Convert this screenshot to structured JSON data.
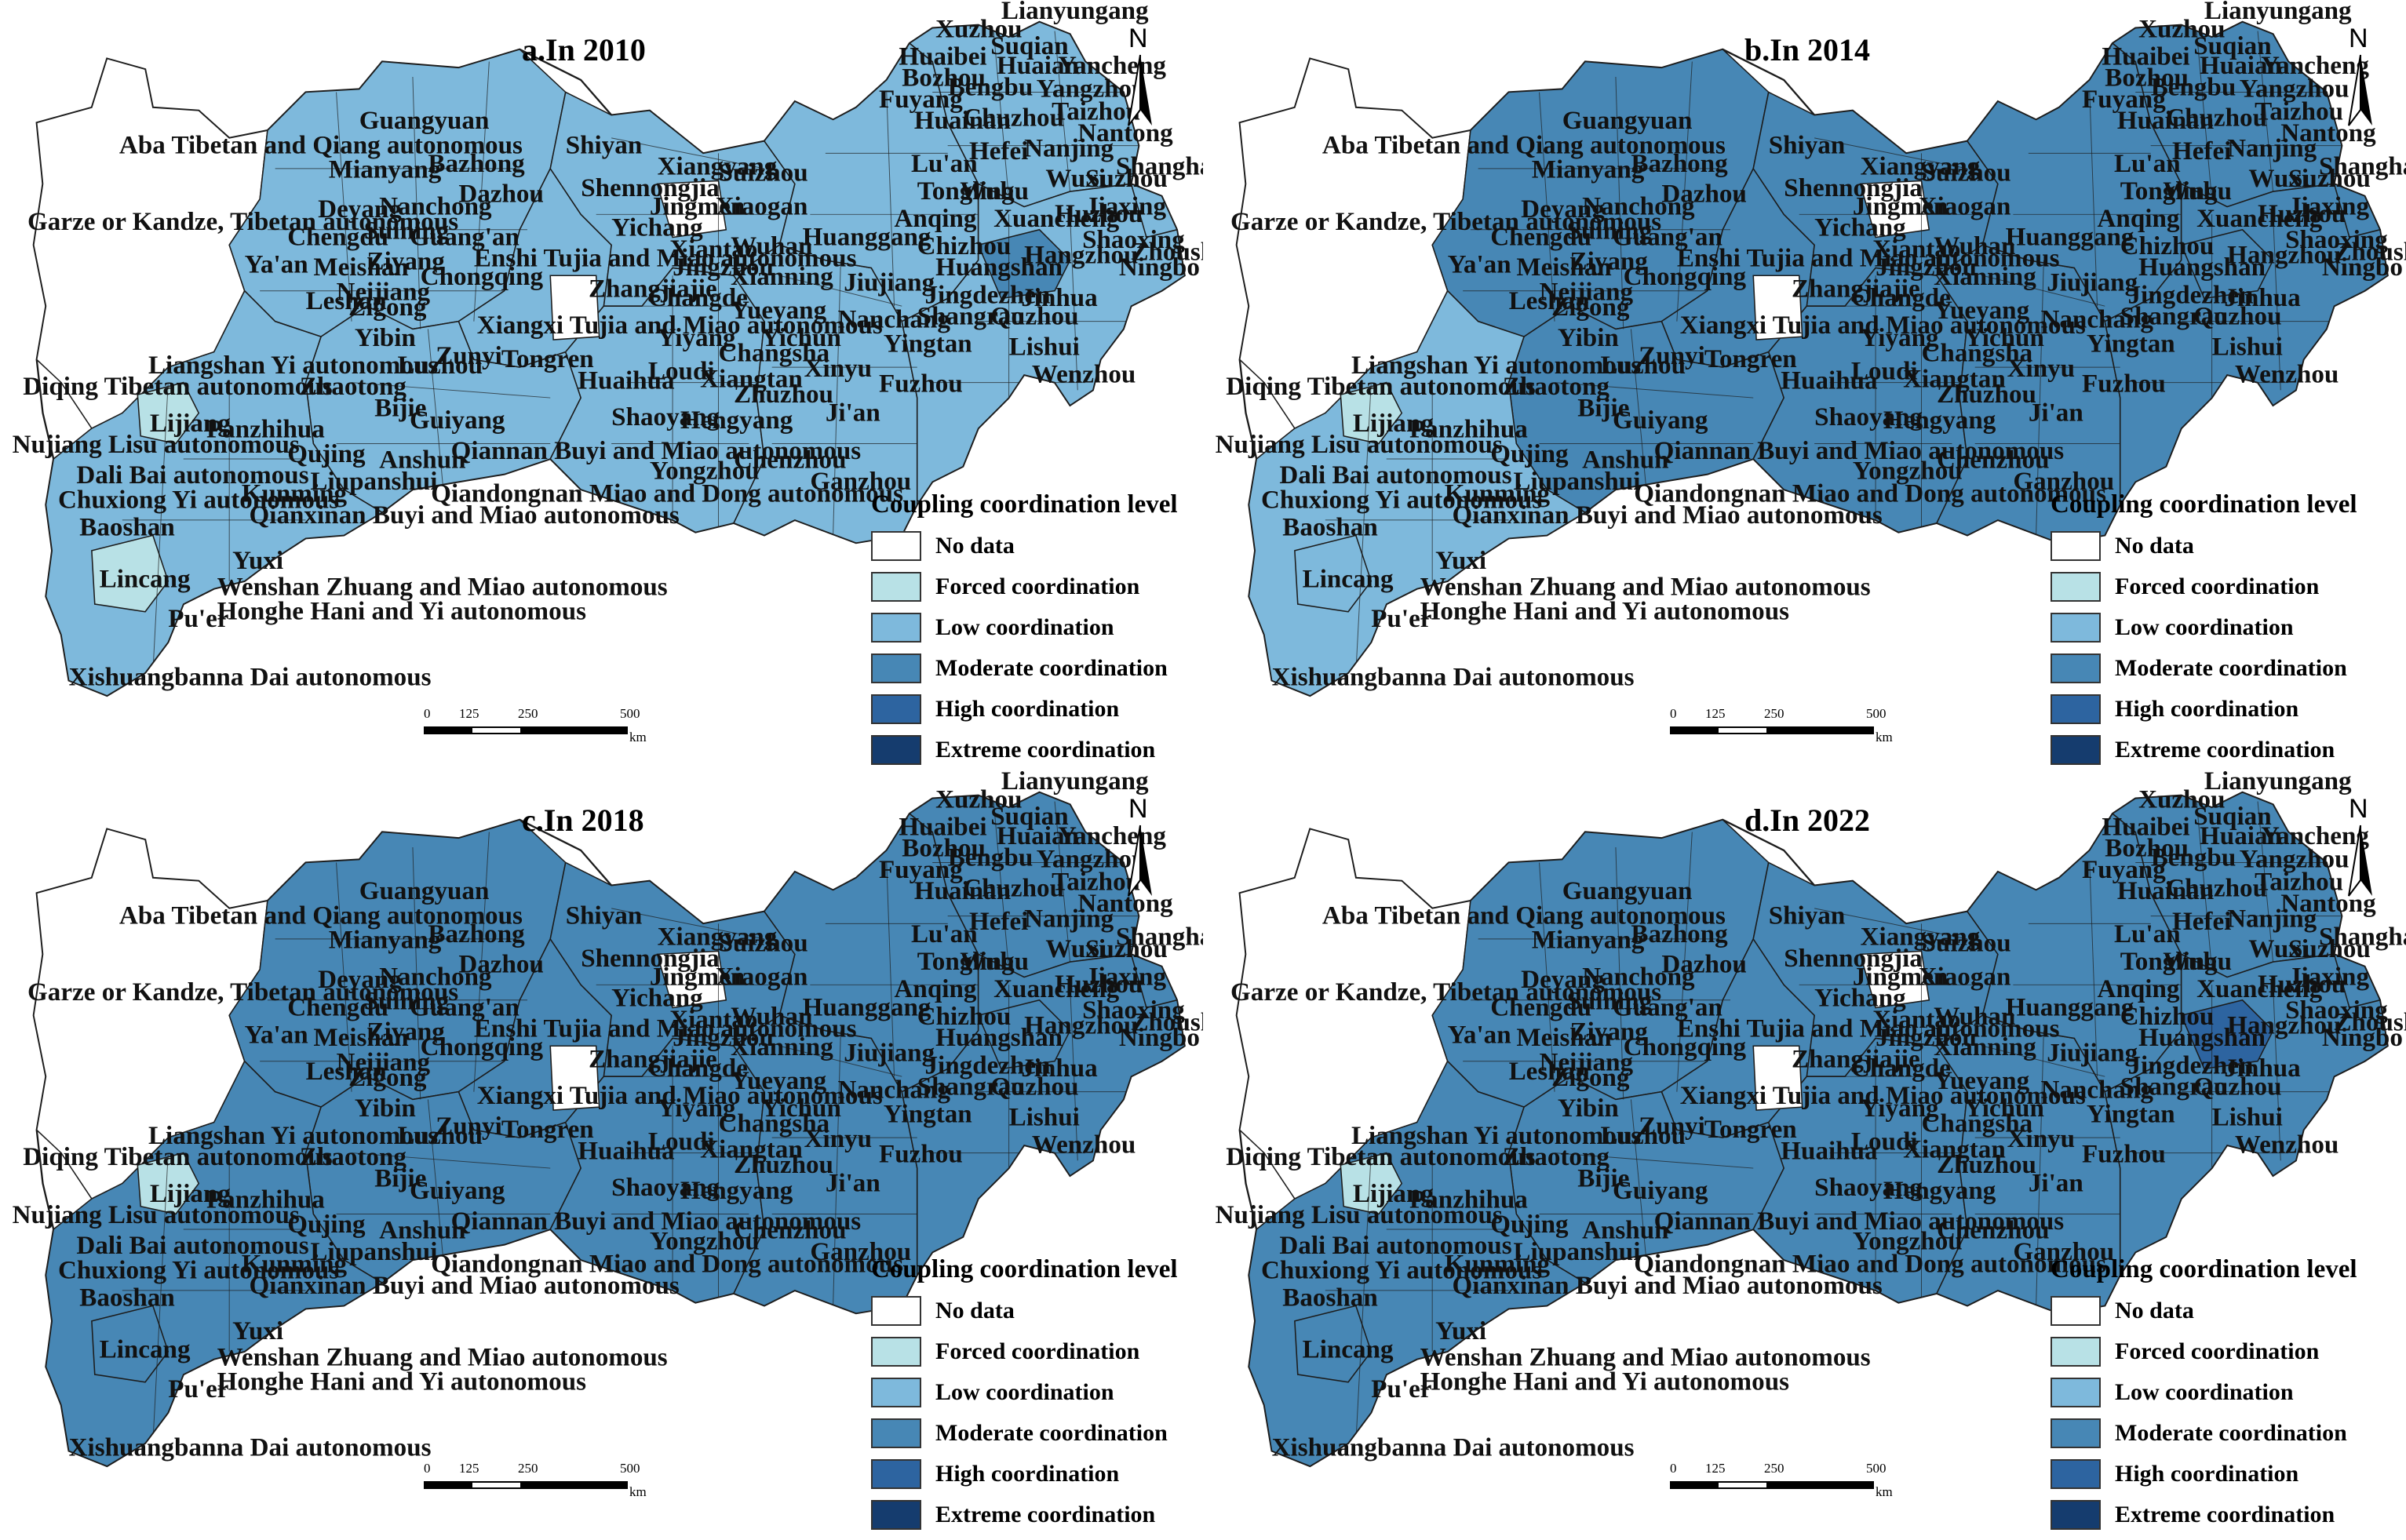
{
  "colors": {
    "no_data": "#ffffff",
    "forced": "#b8e1e6",
    "low": "#7eb9dc",
    "moderate": "#4787b5",
    "high": "#2d64a0",
    "extreme": "#153c6e",
    "border": "#1c1c1c"
  },
  "legend": {
    "title": "Coupling coordination level",
    "items": [
      {
        "label": "No data",
        "color_key": "no_data"
      },
      {
        "label": "Forced  coordination",
        "color_key": "forced"
      },
      {
        "label": "Low coordination",
        "color_key": "low"
      },
      {
        "label": "Moderate coordination",
        "color_key": "moderate"
      },
      {
        "label": "High coordination",
        "color_key": "high"
      },
      {
        "label": "Extreme coordination",
        "color_key": "extreme"
      }
    ]
  },
  "north_arrow": {
    "label": "N",
    "icon": "north-arrow-icon"
  },
  "scale": {
    "ticks": [
      "0",
      "125",
      "250",
      "500"
    ],
    "unit": "km"
  },
  "panels": [
    {
      "title": "a.In 2010",
      "dominant": "low",
      "west": "low",
      "forced_regions": [
        "Lijiang",
        "Lincang"
      ],
      "hotspot": "moderate"
    },
    {
      "title": "b.In 2014",
      "dominant": "moderate",
      "west": "low",
      "forced_regions": [
        "Lijiang"
      ],
      "hotspot": "moderate"
    },
    {
      "title": "c.In 2018",
      "dominant": "moderate",
      "west": "moderate",
      "forced_regions": [
        "Lijiang"
      ],
      "hotspot": "moderate"
    },
    {
      "title": "d.In 2022",
      "dominant": "moderate",
      "west": "moderate",
      "forced_regions": [
        "Lijiang"
      ],
      "hotspot": "high"
    }
  ],
  "place_labels": [
    "Lianyungang",
    "Xuzhou",
    "Suqian",
    "Huaibei",
    "Bozhou",
    "Huaian",
    "Yancheng",
    "Fuyang",
    "Bengbu",
    "Yangzhou",
    "Taizhou",
    "Chuzhou",
    "Huainan",
    "Nantong",
    "Lu'an",
    "Hefei",
    "Nanjing",
    "Shanghai",
    "Wuxi",
    "Suzhou",
    "Tongling",
    "Jiaxing",
    "Anqing",
    "Wuhu",
    "Xuancheng",
    "Huzhou",
    "Shaoxing",
    "Zhoushan",
    "Ningbo",
    "Hangzhou",
    "Chizhou",
    "Huangshan",
    "Jingdezhen",
    "Jinhua",
    "Shangrao",
    "Quzhou",
    "Lishui",
    "Wenzhou",
    "Yingtan",
    "Fuzhou",
    "Nanchang",
    "Jiujiang",
    "Ji'an",
    "Ganzhou",
    "Xinyu",
    "Yichun",
    "Changsha",
    "Zhuzhou",
    "Xiangtan",
    "Hengyang",
    "Chenzhou",
    "Yongzhou",
    "Shaoyang",
    "Loudi",
    "Huaihua",
    "Yiyang",
    "Changde",
    "Yueyang",
    "Zhangjiajie",
    "Xianning",
    "Huanggang",
    "Wuhan",
    "Xiaogan",
    "Jingmen",
    "Jingzhou",
    "Yichang",
    "Xiangyang",
    "Suizhou",
    "Shiyan",
    "Shennongjia",
    "Xiantao",
    "Tongren",
    "Zunyi",
    "Guiyang",
    "Bijie",
    "Anshun",
    "Liupanshui",
    "Qiannan Buyi and Miao autonomous",
    "Qiandongnan Miao and Dong autonomous",
    "Qianxinan Buyi and Miao autonomous",
    "Chongqing",
    "Guang'an",
    "Nanchong",
    "Dazhou",
    "Bazhong",
    "Guangyuan",
    "Mianyang",
    "Deyang",
    "Chengdu",
    "Suining",
    "Neijiang",
    "Zigong",
    "Yibin",
    "Luzhou",
    "Leshan",
    "Meishan",
    "Ya'an",
    "Ziyang",
    "Aba Tibetan and Qiang autonomous",
    "Garze or Kandze, Tibetan autonomous",
    "Liangshan Yi autonomous",
    "Diqing Tibetan autonomous",
    "Nujiang Lisu autonomous",
    "Lijiang",
    "Panzhihua",
    "Dali Bai autonomous",
    "Chuxiong Yi autonomous",
    "Baoshan",
    "Lincang",
    "Pu'er",
    "Yuxi",
    "Kunming",
    "Qujing",
    "Zhaotong",
    "Xishuangbanna Dai autonomous",
    "Wenshan Zhuang and Miao autonomous",
    "Honghe Hani and Yi autonomous",
    "Enshi Tujia and Miao autonomous",
    "Xiangxi Tujia and Miao autonomous"
  ]
}
